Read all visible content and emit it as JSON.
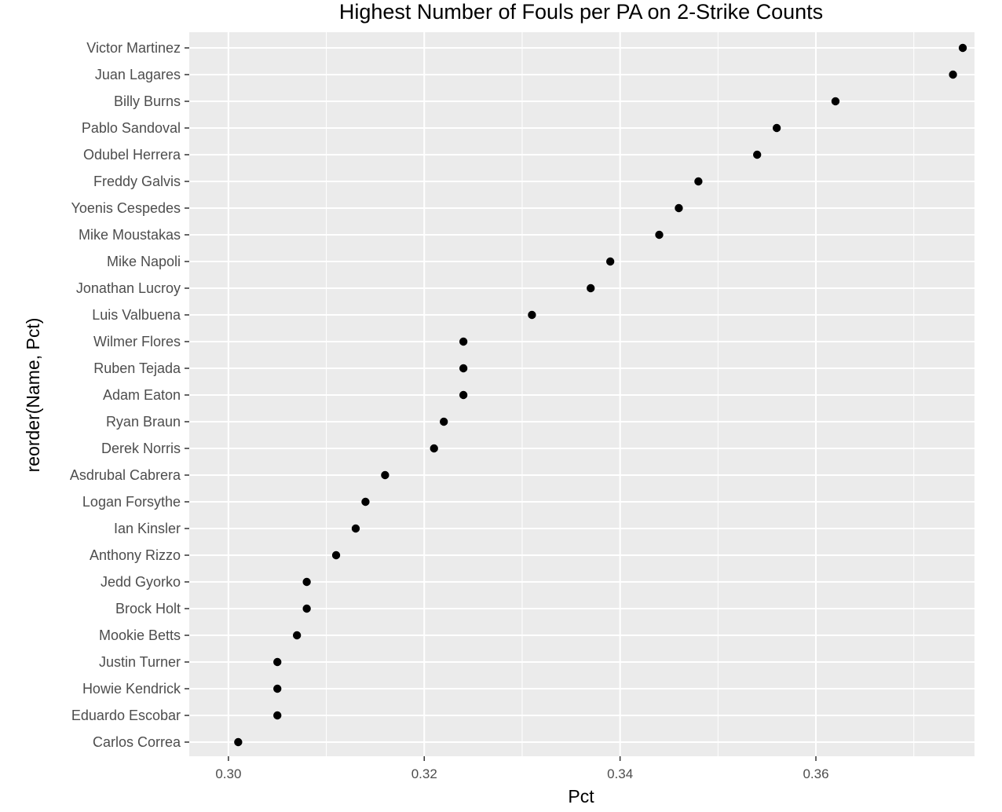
{
  "chart_data": {
    "type": "scatter",
    "title": "Highest Number of Fouls per PA on 2-Strike Counts",
    "xlabel": "Pct",
    "ylabel": "reorder(Name, Pct)",
    "xlim": [
      0.296,
      0.3762
    ],
    "x_ticks": [
      "0.30",
      "0.32",
      "0.34",
      "0.36"
    ],
    "grid": true,
    "colors": {
      "panel": "#ebebeb",
      "grid": "#ffffff",
      "point": "#000000",
      "tick_text": "#4d4d4d"
    },
    "points": [
      {
        "name": "Victor Martinez",
        "value": 0.375
      },
      {
        "name": "Juan Lagares",
        "value": 0.374
      },
      {
        "name": "Billy Burns",
        "value": 0.362
      },
      {
        "name": "Pablo Sandoval",
        "value": 0.356
      },
      {
        "name": "Odubel Herrera",
        "value": 0.354
      },
      {
        "name": "Freddy Galvis",
        "value": 0.348
      },
      {
        "name": "Yoenis Cespedes",
        "value": 0.346
      },
      {
        "name": "Mike Moustakas",
        "value": 0.344
      },
      {
        "name": "Mike Napoli",
        "value": 0.339
      },
      {
        "name": "Jonathan Lucroy",
        "value": 0.337
      },
      {
        "name": "Luis Valbuena",
        "value": 0.331
      },
      {
        "name": "Wilmer Flores",
        "value": 0.324
      },
      {
        "name": "Ruben Tejada",
        "value": 0.324
      },
      {
        "name": "Adam Eaton",
        "value": 0.324
      },
      {
        "name": "Ryan Braun",
        "value": 0.322
      },
      {
        "name": "Derek Norris",
        "value": 0.321
      },
      {
        "name": "Asdrubal Cabrera",
        "value": 0.316
      },
      {
        "name": "Logan Forsythe",
        "value": 0.314
      },
      {
        "name": "Ian Kinsler",
        "value": 0.313
      },
      {
        "name": "Anthony Rizzo",
        "value": 0.311
      },
      {
        "name": "Jedd Gyorko",
        "value": 0.308
      },
      {
        "name": "Brock Holt",
        "value": 0.308
      },
      {
        "name": "Mookie Betts",
        "value": 0.307
      },
      {
        "name": "Justin Turner",
        "value": 0.305
      },
      {
        "name": "Howie Kendrick",
        "value": 0.305
      },
      {
        "name": "Eduardo Escobar",
        "value": 0.305
      },
      {
        "name": "Carlos Correa",
        "value": 0.301
      }
    ]
  }
}
